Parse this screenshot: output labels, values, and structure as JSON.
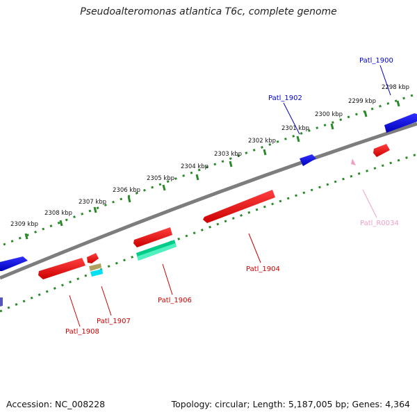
{
  "title": "Pseudoalteromonas atlantica T6c, complete genome",
  "footer": {
    "accession": "Accession: NC_008228",
    "summary": "Topology: circular; Length: 5,187,005 bp; Genes: 4,364"
  },
  "scale_labels": [
    "2309 kbp",
    "2308 kbp",
    "2307 kbp",
    "2306 kbp",
    "2305 kbp",
    "2304 kbp",
    "2303 kbp",
    "2302 kbp",
    "2301 kbp",
    "2300 kbp",
    "2299 kbp",
    "2298 kbp"
  ],
  "gene_labels": {
    "patl_1900": "Patl_1900",
    "patl_1902": "Patl_1902",
    "patl_r0034": "Patl_R0034",
    "patl_1904": "Patl_1904",
    "patl_1906": "Patl_1906",
    "patl_1907": "Patl_1907",
    "patl_1908": "Patl_1908"
  },
  "colors": {
    "forward_gene": "#0000ee",
    "reverse_gene": "#ee0000",
    "rna": "#f0a0c8",
    "backbone": "#808080",
    "scale": "#2a8a2a",
    "cds_misc": "#00cc88",
    "cds_cyan": "#00e0f0",
    "cds_tan": "#b0a060"
  }
}
